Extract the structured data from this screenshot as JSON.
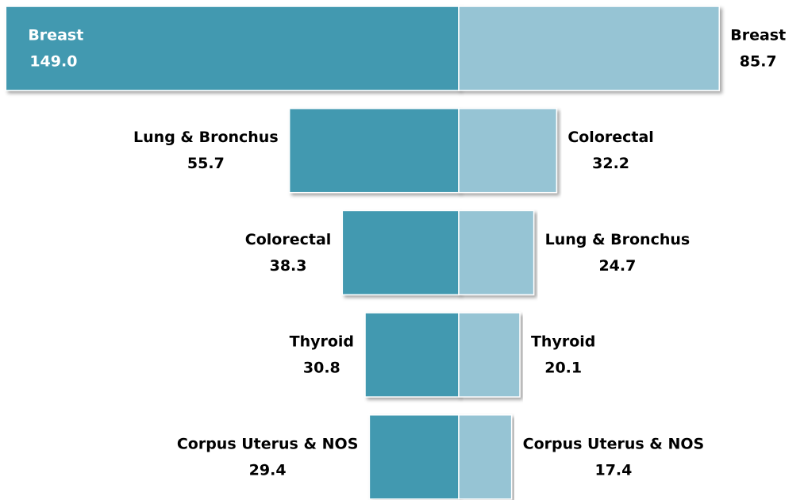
{
  "chart_data": {
    "type": "butterfly",
    "series": [
      {
        "color": "#4399b0",
        "categories": [
          "Breast",
          "Lung & Bronchus",
          "Colorectal",
          "Thyroid",
          "Corpus Uterus & NOS"
        ],
        "values": [
          149.0,
          55.7,
          38.3,
          30.8,
          29.4
        ],
        "value_labels": [
          "149.0",
          "55.7",
          "38.3",
          "30.8",
          "29.4"
        ]
      },
      {
        "color": "#96c4d4",
        "categories": [
          "Breast",
          "Colorectal",
          "Lung & Bronchus",
          "Thyroid",
          "Corpus Uterus & NOS"
        ],
        "values": [
          85.7,
          32.2,
          24.7,
          20.1,
          17.4
        ],
        "value_labels": [
          "85.7",
          "32.2",
          "24.7",
          "20.1",
          "17.4"
        ]
      }
    ]
  }
}
